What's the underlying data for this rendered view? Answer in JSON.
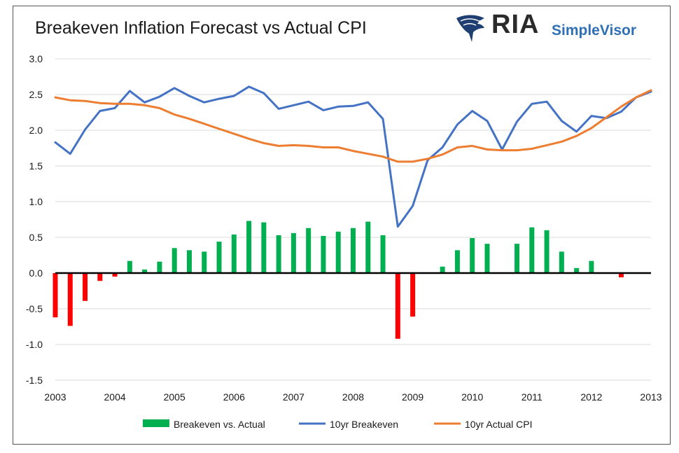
{
  "header": {
    "title": "Breakeven Inflation Forecast vs Actual CPI",
    "logo_text": "RIA",
    "logo_subtext": "SimpleVisor",
    "logo_icon": "eagle-icon"
  },
  "chart_data": {
    "type": "bar",
    "title": "Breakeven Inflation Forecast vs Actual CPI",
    "xlabel": "",
    "ylabel": "",
    "xlim": [
      2003,
      2013
    ],
    "ylim": [
      -1.5,
      3.0
    ],
    "yticks": [
      "3.0",
      "2.5",
      "2.0",
      "1.5",
      "1.0",
      "0.5",
      "0.0",
      "-0.5",
      "-1.0",
      "-1.5"
    ],
    "xticks": [
      "2003",
      "2004",
      "2005",
      "2006",
      "2007",
      "2008",
      "2009",
      "2010",
      "2011",
      "2012",
      "2013"
    ],
    "grid": true,
    "legend_position": "bottom",
    "colors": {
      "positive_bar": "#00b050",
      "negative_bar": "#ff0000",
      "breakeven_line": "#4472c4",
      "cpi_line": "#ed7d31",
      "zero_line": "#000000"
    },
    "series": [
      {
        "name": "Breakeven vs. Actual",
        "type": "bar",
        "x": [
          2003.0,
          2003.25,
          2003.5,
          2003.75,
          2004.0,
          2004.25,
          2004.5,
          2004.75,
          2005.0,
          2005.25,
          2005.5,
          2005.75,
          2006.0,
          2006.25,
          2006.5,
          2006.75,
          2007.0,
          2007.25,
          2007.5,
          2007.75,
          2008.0,
          2008.25,
          2008.5,
          2008.75,
          2009.0,
          2009.25,
          2009.5,
          2009.75,
          2010.0,
          2010.25,
          2010.5,
          2010.75,
          2011.0,
          2011.25,
          2011.5,
          2011.75,
          2012.0,
          2012.25,
          2012.5,
          2012.75
        ],
        "values": [
          -0.62,
          -0.74,
          -0.39,
          -0.11,
          -0.05,
          0.17,
          0.05,
          0.16,
          0.35,
          0.32,
          0.3,
          0.44,
          0.54,
          0.73,
          0.71,
          0.53,
          0.56,
          0.63,
          0.52,
          0.58,
          0.63,
          0.72,
          0.53,
          -0.92,
          -0.61,
          0.0,
          0.09,
          0.32,
          0.49,
          0.41,
          0.0,
          0.41,
          0.64,
          0.6,
          0.3,
          0.07,
          0.17,
          0.0,
          -0.06,
          0.0
        ]
      },
      {
        "name": "10yr Breakeven",
        "type": "line",
        "x": [
          2003.0,
          2003.25,
          2003.5,
          2003.75,
          2004.0,
          2004.25,
          2004.5,
          2004.75,
          2005.0,
          2005.25,
          2005.5,
          2005.75,
          2006.0,
          2006.25,
          2006.5,
          2006.75,
          2007.0,
          2007.25,
          2007.5,
          2007.75,
          2008.0,
          2008.25,
          2008.5,
          2008.75,
          2009.0,
          2009.25,
          2009.5,
          2009.75,
          2010.0,
          2010.25,
          2010.5,
          2010.75,
          2011.0,
          2011.25,
          2011.5,
          2011.75,
          2012.0,
          2012.25,
          2012.5,
          2012.75,
          2013.0
        ],
        "values": [
          1.83,
          1.67,
          2.01,
          2.27,
          2.31,
          2.55,
          2.39,
          2.47,
          2.59,
          2.48,
          2.39,
          2.44,
          2.48,
          2.61,
          2.52,
          2.3,
          2.35,
          2.4,
          2.28,
          2.33,
          2.34,
          2.39,
          2.16,
          0.65,
          0.94,
          1.58,
          1.76,
          2.08,
          2.27,
          2.13,
          1.73,
          2.12,
          2.37,
          2.4,
          2.13,
          1.98,
          2.2,
          2.17,
          2.26,
          2.46,
          2.54
        ]
      },
      {
        "name": "10yr Actual CPI",
        "type": "line",
        "x": [
          2003.0,
          2003.25,
          2003.5,
          2003.75,
          2004.0,
          2004.25,
          2004.5,
          2004.75,
          2005.0,
          2005.25,
          2005.5,
          2005.75,
          2006.0,
          2006.25,
          2006.5,
          2006.75,
          2007.0,
          2007.25,
          2007.5,
          2007.75,
          2008.0,
          2008.25,
          2008.5,
          2008.75,
          2009.0,
          2009.25,
          2009.5,
          2009.75,
          2010.0,
          2010.25,
          2010.5,
          2010.75,
          2011.0,
          2011.25,
          2011.5,
          2011.75,
          2012.0,
          2012.25,
          2012.5,
          2012.75,
          2013.0
        ],
        "values": [
          2.46,
          2.42,
          2.41,
          2.38,
          2.37,
          2.37,
          2.35,
          2.31,
          2.22,
          2.16,
          2.09,
          2.02,
          1.95,
          1.88,
          1.82,
          1.78,
          1.79,
          1.78,
          1.76,
          1.76,
          1.71,
          1.67,
          1.63,
          1.56,
          1.56,
          1.6,
          1.66,
          1.76,
          1.78,
          1.73,
          1.72,
          1.72,
          1.74,
          1.79,
          1.84,
          1.92,
          2.03,
          2.18,
          2.33,
          2.46,
          2.56
        ]
      }
    ]
  }
}
